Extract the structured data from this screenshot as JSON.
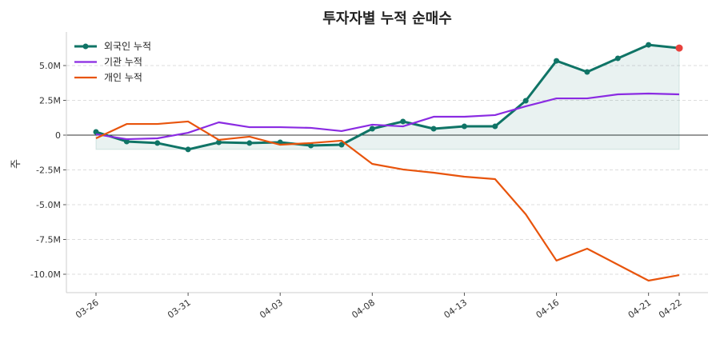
{
  "chart_data": {
    "type": "line",
    "title": "투자자별 누적 순매수",
    "xlabel": "",
    "ylabel": "주",
    "ylim": [
      -11.5,
      7.4
    ],
    "y_unit": "M",
    "yticks": [
      {
        "value": 5.0,
        "label": "5.0M"
      },
      {
        "value": 2.5,
        "label": "2.5M"
      },
      {
        "value": 0,
        "label": "0"
      },
      {
        "value": -2.5,
        "label": "-2.5M"
      },
      {
        "value": -5.0,
        "label": "-5.0M"
      },
      {
        "value": -7.5,
        "label": "-7.5M"
      },
      {
        "value": -10.0,
        "label": "-10.0M"
      }
    ],
    "xticks": [
      {
        "index": 0,
        "label": "03-26"
      },
      {
        "index": 3,
        "label": "03-31"
      },
      {
        "index": 6,
        "label": "04-03"
      },
      {
        "index": 9,
        "label": "04-08"
      },
      {
        "index": 12,
        "label": "04-13"
      },
      {
        "index": 15,
        "label": "04-16"
      },
      {
        "index": 18,
        "label": "04-21"
      },
      {
        "index": 19,
        "label": "04-22"
      }
    ],
    "grid": "horizontal dashed",
    "legend_placement": "top-left",
    "series": [
      {
        "name": "외국인 누적",
        "color": "#0f7466",
        "markers": true,
        "fill": true,
        "last_marker_color": "#e8413c",
        "values": [
          0.23,
          -0.46,
          -0.57,
          -1.03,
          -0.52,
          -0.57,
          -0.52,
          -0.75,
          -0.69,
          0.46,
          0.98,
          0.46,
          0.63,
          0.63,
          2.47,
          5.34,
          4.54,
          5.52,
          6.49,
          6.26
        ]
      },
      {
        "name": "기관 누적",
        "color": "#8a2be2",
        "markers": false,
        "values": [
          0.06,
          -0.29,
          -0.23,
          0.17,
          0.92,
          0.57,
          0.57,
          0.52,
          0.29,
          0.75,
          0.63,
          1.32,
          1.32,
          1.44,
          2.07,
          2.64,
          2.64,
          2.93,
          2.99,
          2.93
        ]
      },
      {
        "name": "개인 누적",
        "color": "#e8540c",
        "markers": false,
        "values": [
          -0.23,
          0.8,
          0.8,
          0.98,
          -0.34,
          -0.11,
          -0.69,
          -0.57,
          -0.4,
          -2.07,
          -2.47,
          -2.7,
          -2.99,
          -3.16,
          -5.69,
          -9.02,
          -8.16,
          -9.31,
          -10.46,
          -10.06
        ]
      }
    ]
  }
}
